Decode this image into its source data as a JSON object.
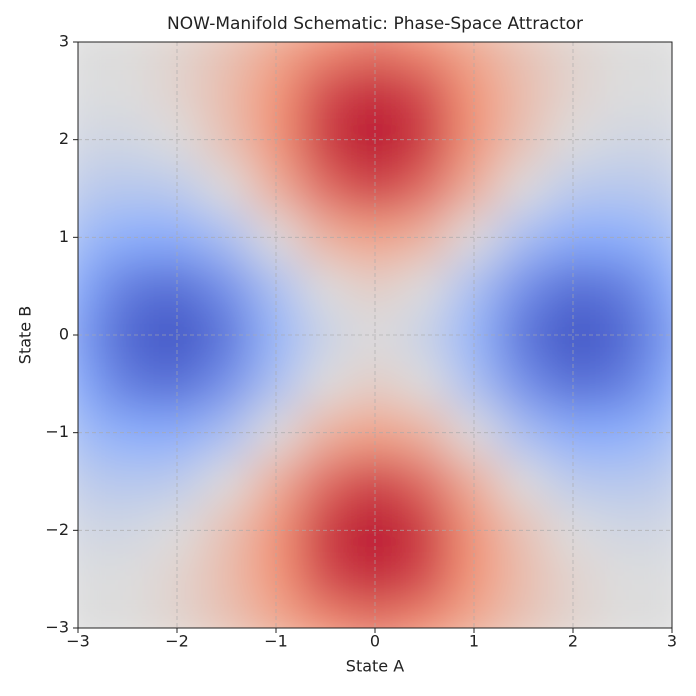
{
  "chart_data": {
    "type": "contourf",
    "title": "NOW-Manifold Schematic: Phase-Space Attractor",
    "x_label": "State A",
    "y_label": "State B",
    "x": [
      -3,
      -2.5,
      -2,
      -1.5,
      -1,
      -0.5,
      0,
      0.5,
      1,
      1.5,
      2,
      2.5,
      3
    ],
    "y": [
      -3,
      -2.5,
      -2,
      -1.5,
      -1,
      -0.5,
      0,
      0.5,
      1,
      1.5,
      2,
      2.5,
      3
    ],
    "z": [
      [
        0,
        0.01,
        0.07,
        0.19,
        0.36,
        0.53,
        0.6,
        0.53,
        0.36,
        0.19,
        0.07,
        0.01,
        0
      ],
      [
        -0.01,
        0,
        0.08,
        0.25,
        0.51,
        0.76,
        0.87,
        0.76,
        0.51,
        0.25,
        0.08,
        0,
        -0.01
      ],
      [
        -0.07,
        -0.08,
        0,
        0.21,
        0.52,
        0.83,
        0.96,
        0.83,
        0.52,
        0.21,
        0,
        -0.08,
        -0.07
      ],
      [
        -0.19,
        -0.25,
        -0.21,
        0,
        0.34,
        0.66,
        0.8,
        0.66,
        0.34,
        0,
        -0.21,
        -0.25,
        -0.19
      ],
      [
        -0.36,
        -0.51,
        -0.52,
        -0.34,
        0,
        0.32,
        0.45,
        0.32,
        0,
        -0.34,
        -0.52,
        -0.51,
        -0.36
      ],
      [
        -0.53,
        -0.76,
        -0.83,
        -0.66,
        -0.32,
        0,
        0.13,
        0,
        -0.32,
        -0.66,
        -0.83,
        -0.76,
        -0.53
      ],
      [
        -0.6,
        -0.87,
        -0.96,
        -0.8,
        -0.45,
        -0.13,
        0,
        -0.13,
        -0.45,
        -0.8,
        -0.96,
        -0.87,
        -0.6
      ],
      [
        -0.53,
        -0.76,
        -0.83,
        -0.66,
        -0.32,
        0,
        0.13,
        0,
        -0.32,
        -0.66,
        -0.83,
        -0.76,
        -0.53
      ],
      [
        -0.36,
        -0.51,
        -0.52,
        -0.34,
        0,
        0.32,
        0.45,
        0.32,
        0,
        -0.34,
        -0.52,
        -0.51,
        -0.36
      ],
      [
        -0.19,
        -0.25,
        -0.21,
        0,
        0.34,
        0.66,
        0.8,
        0.66,
        0.34,
        0,
        -0.21,
        -0.25,
        -0.19
      ],
      [
        -0.07,
        -0.08,
        0,
        0.21,
        0.52,
        0.83,
        0.96,
        0.83,
        0.52,
        0.21,
        0,
        -0.08,
        -0.07
      ],
      [
        -0.01,
        0,
        0.08,
        0.25,
        0.51,
        0.76,
        0.87,
        0.76,
        0.51,
        0.25,
        0.08,
        0,
        -0.01
      ],
      [
        0,
        0.01,
        0.07,
        0.19,
        0.36,
        0.53,
        0.6,
        0.53,
        0.36,
        0.19,
        0.07,
        0.01,
        0
      ]
    ],
    "zlim": [
      -1,
      1
    ],
    "colormap": [
      "#3b4cc0",
      "#8db0fe",
      "#dddddd",
      "#f49a7b",
      "#b40426"
    ],
    "xlim": [
      -3,
      3
    ],
    "ylim": [
      -3,
      3
    ],
    "xticks": [
      {
        "value": -3,
        "label": "−3"
      },
      {
        "value": -2,
        "label": "−2"
      },
      {
        "value": -1,
        "label": "−1"
      },
      0,
      1,
      2,
      3
    ],
    "yticks": [
      {
        "value": -3,
        "label": "−3"
      },
      {
        "value": -2,
        "label": "−2"
      },
      {
        "value": -1,
        "label": "−1"
      },
      0,
      1,
      2,
      3
    ],
    "grid": true
  }
}
